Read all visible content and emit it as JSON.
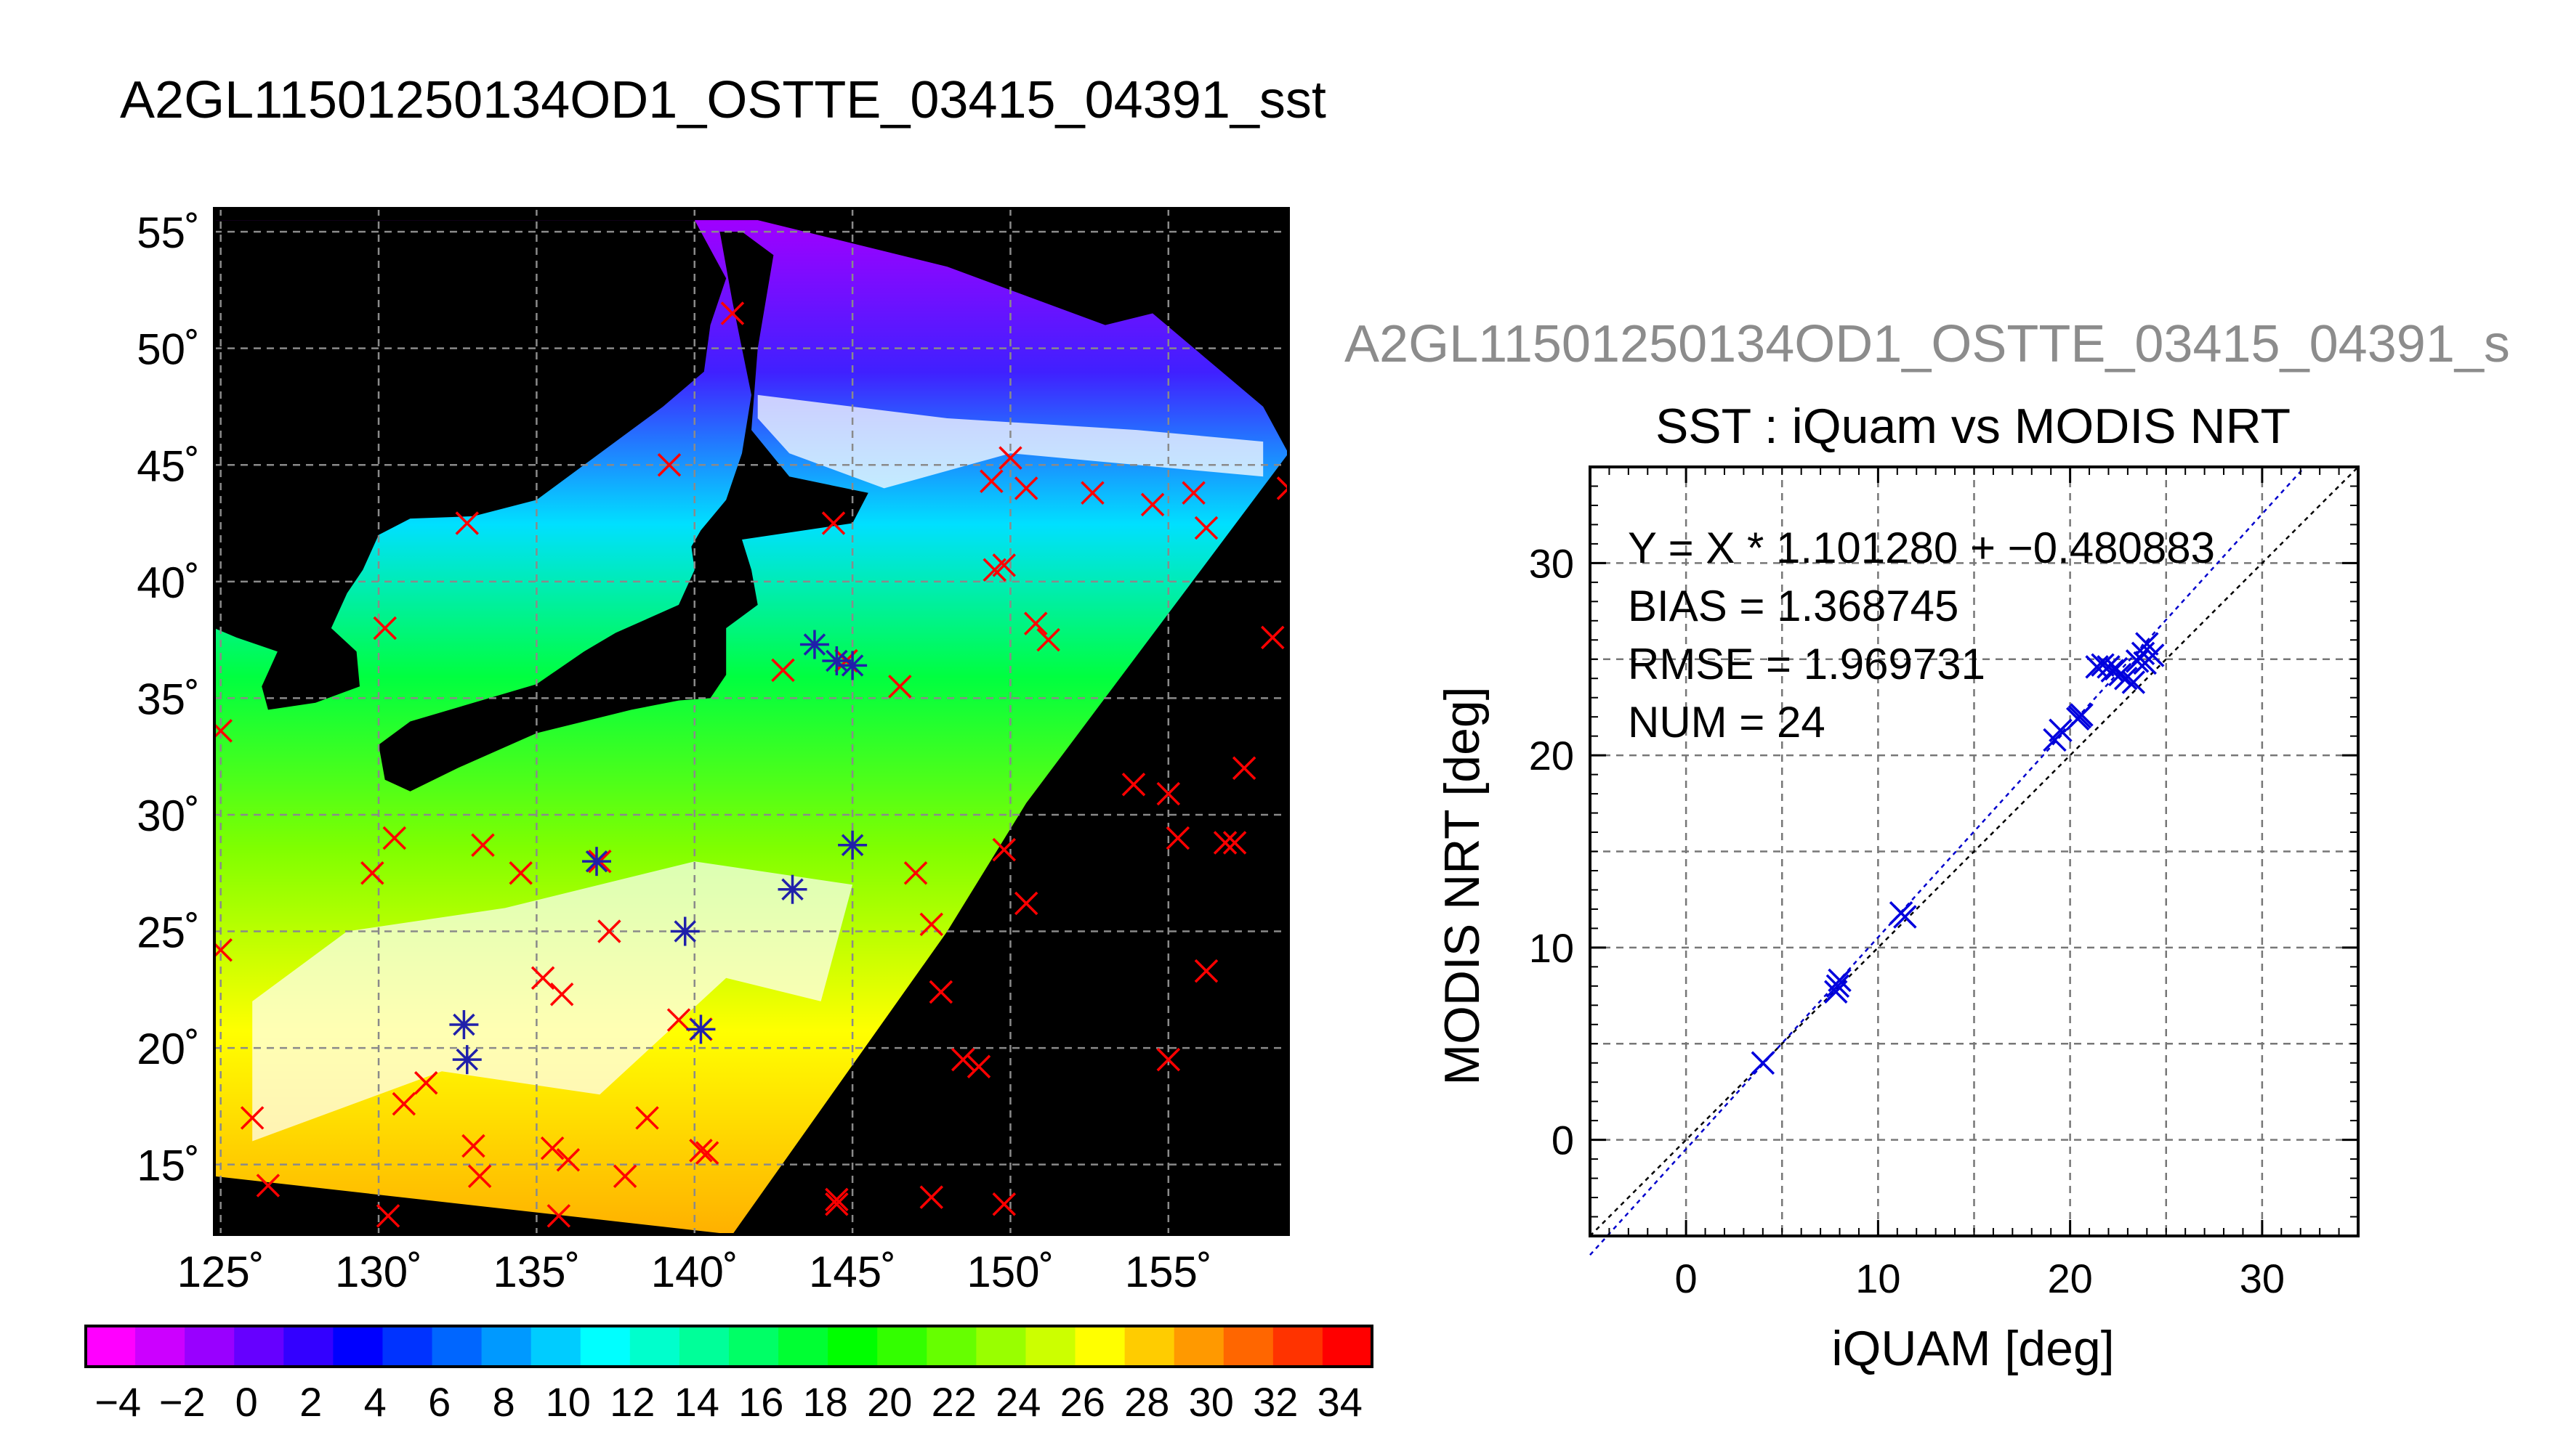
{
  "main_title": "A2GL11501250134OD1_OSTTE_03415_04391_sst",
  "map": {
    "lat_ticks": [
      55,
      50,
      45,
      40,
      35,
      30,
      25,
      20,
      15
    ],
    "lon_ticks": [
      125,
      130,
      135,
      140,
      145,
      150,
      155
    ],
    "lat_tick_labels": [
      "55˚",
      "50˚",
      "45˚",
      "40˚",
      "35˚",
      "30˚",
      "25˚",
      "20˚",
      "15˚"
    ],
    "lon_tick_labels": [
      "125˚",
      "130˚",
      "135˚",
      "140˚",
      "145˚",
      "150˚",
      "155˚"
    ],
    "lon_range": [
      124.8,
      158.8
    ],
    "lat_range": [
      12.0,
      56.0
    ],
    "swath": [
      [
        124.8,
        14.5
      ],
      [
        141.2,
        12.0
      ],
      [
        148.0,
        25.0
      ],
      [
        150.5,
        30.5
      ],
      [
        158.8,
        45.5
      ],
      [
        158.0,
        47.5
      ],
      [
        154.5,
        51.5
      ],
      [
        153.0,
        51.0
      ],
      [
        148.0,
        53.5
      ],
      [
        142.0,
        55.5
      ],
      [
        132.0,
        55.5
      ],
      [
        124.8,
        55.5
      ]
    ],
    "red_marks": [
      [
        125,
        33.6
      ],
      [
        125,
        24.2
      ],
      [
        126,
        17
      ],
      [
        126.5,
        14.1
      ],
      [
        130.2,
        38
      ],
      [
        130.5,
        29
      ],
      [
        129.8,
        27.5
      ],
      [
        130.8,
        17.6
      ],
      [
        131.5,
        18.5
      ],
      [
        130.3,
        12.8
      ],
      [
        132.8,
        42.5
      ],
      [
        133.3,
        28.7
      ],
      [
        133,
        15.8
      ],
      [
        133.2,
        14.5
      ],
      [
        134.5,
        27.5
      ],
      [
        135.2,
        23
      ],
      [
        135.8,
        22.3
      ],
      [
        135.5,
        15.7
      ],
      [
        136,
        15.2
      ],
      [
        135.7,
        12.8
      ],
      [
        137,
        28
      ],
      [
        137.3,
        25
      ],
      [
        137.8,
        14.5
      ],
      [
        138.5,
        17
      ],
      [
        139.5,
        21.2
      ],
      [
        140.2,
        20.8
      ],
      [
        140.2,
        15.6
      ],
      [
        140.4,
        15.5
      ],
      [
        141.2,
        51.5
      ],
      [
        139.2,
        45
      ],
      [
        142.8,
        36.2
      ],
      [
        144.4,
        42.5
      ],
      [
        144.8,
        36.6
      ],
      [
        146.5,
        35.5
      ],
      [
        147,
        27.5
      ],
      [
        147.5,
        25.3
      ],
      [
        147.8,
        22.4
      ],
      [
        148.5,
        19.5
      ],
      [
        149,
        19.2
      ],
      [
        149.4,
        44.3
      ],
      [
        149.5,
        40.5
      ],
      [
        149.8,
        40.7
      ],
      [
        150,
        45.3
      ],
      [
        150.5,
        44
      ],
      [
        150.8,
        38.2
      ],
      [
        151.2,
        37.5
      ],
      [
        150.5,
        26.2
      ],
      [
        149.8,
        28.5
      ],
      [
        152.6,
        43.8
      ],
      [
        153.9,
        31.3
      ],
      [
        154.5,
        43.3
      ],
      [
        155,
        30.9
      ],
      [
        155.3,
        29
      ],
      [
        155,
        19.5
      ],
      [
        155.8,
        43.8
      ],
      [
        156.2,
        42.3
      ],
      [
        156.2,
        23.3
      ],
      [
        156.8,
        28.8
      ],
      [
        157.1,
        28.8
      ],
      [
        157.4,
        32
      ],
      [
        158.3,
        37.6
      ],
      [
        158.8,
        44
      ],
      [
        144.5,
        13.5
      ],
      [
        144.5,
        13.3
      ],
      [
        147.5,
        13.6
      ],
      [
        149.8,
        13.3
      ]
    ],
    "star_marks": [
      [
        132.7,
        21
      ],
      [
        132.8,
        19.5
      ],
      [
        136.9,
        28
      ],
      [
        139.7,
        25
      ],
      [
        140.2,
        20.8
      ],
      [
        143.1,
        26.8
      ],
      [
        143.8,
        37.3
      ],
      [
        144.5,
        36.6
      ],
      [
        145,
        36.4
      ],
      [
        145,
        28.7
      ]
    ]
  },
  "colorbar": {
    "tick_labels": [
      "−4",
      "−2",
      "0",
      "2",
      "4",
      "6",
      "8",
      "10",
      "12",
      "14",
      "16",
      "18",
      "20",
      "22",
      "24",
      "26",
      "28",
      "30",
      "32",
      "34"
    ],
    "range": [
      -5,
      35
    ],
    "colors": [
      "#ff00ff",
      "#cc00ff",
      "#9900ff",
      "#6600ff",
      "#3300ff",
      "#0000ff",
      "#0033ff",
      "#0066ff",
      "#0099ff",
      "#00ccff",
      "#00ffff",
      "#00ffcc",
      "#00ff99",
      "#00ff66",
      "#00ff33",
      "#00ff00",
      "#33ff00",
      "#66ff00",
      "#99ff00",
      "#ccff00",
      "#ffff00",
      "#ffcc00",
      "#ff9900",
      "#ff6600",
      "#ff3300",
      "#ff0000"
    ]
  },
  "chart_data": {
    "type": "scatter",
    "suptitle": "A2GL11501250134OD1_OSTTE_03415_04391_s",
    "title": "SST : iQuam vs MODIS NRT",
    "xlabel": "iQUAM [deg]",
    "ylabel": "MODIS NRT [deg]",
    "xlim": [
      -5,
      35
    ],
    "ylim": [
      -5,
      35
    ],
    "x_ticks": [
      0,
      10,
      20,
      30
    ],
    "y_ticks": [
      0,
      10,
      20,
      30
    ],
    "x_tick_labels": [
      "0",
      "10",
      "20",
      "30"
    ],
    "y_tick_labels": [
      "0",
      "10",
      "20",
      "30"
    ],
    "grid": true,
    "annotations": [
      "Y = X * 1.101280 + −0.480883",
      "BIAS = 1.368745",
      "RMSE = 1.969731",
      "NUM = 24"
    ],
    "fit_slope": 1.10128,
    "fit_intercept": -0.480883,
    "x": [
      4.0,
      7.8,
      7.9,
      8.0,
      11.2,
      11.4,
      19.2,
      19.5,
      20.4,
      20.6,
      21.4,
      21.7,
      22.0,
      22.2,
      22.6,
      22.9,
      23.3,
      23.5,
      23.8,
      24.0,
      24.3,
      20.5,
      22.4,
      23.9
    ],
    "y": [
      4.0,
      7.7,
      8.0,
      8.3,
      11.8,
      11.6,
      20.8,
      21.3,
      21.9,
      22.1,
      24.6,
      24.7,
      24.6,
      24.4,
      24.2,
      24.0,
      23.8,
      24.9,
      25.3,
      25.8,
      25.2,
      22.0,
      24.5,
      24.8
    ]
  }
}
